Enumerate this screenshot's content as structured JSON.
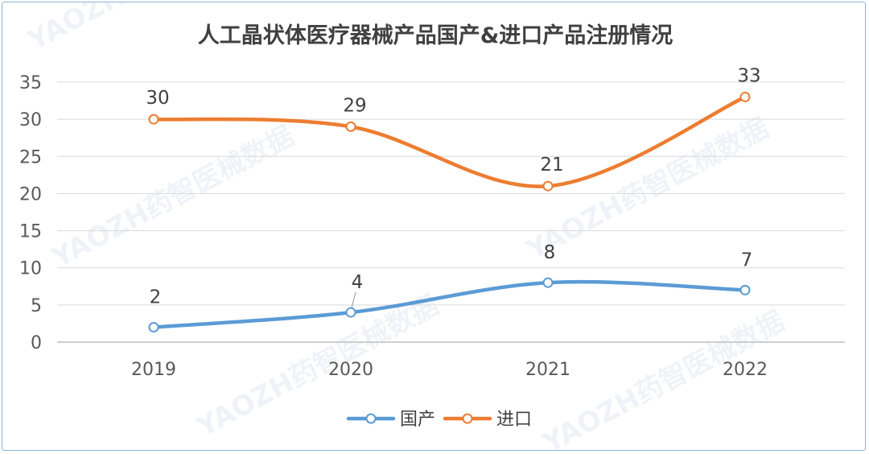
{
  "chart_data": {
    "type": "line",
    "title": "人工晶状体医疗器械产品国产&进口产品注册情况",
    "categories": [
      "2019",
      "2020",
      "2021",
      "2022"
    ],
    "series": [
      {
        "name": "国产",
        "values": [
          2,
          4,
          8,
          7
        ],
        "color": "#5b9bd5"
      },
      {
        "name": "进口",
        "values": [
          30,
          29,
          21,
          33
        ],
        "color": "#ed7d31"
      }
    ],
    "ylim": [
      0,
      35
    ],
    "yticks": [
      0,
      5,
      10,
      15,
      20,
      25,
      30,
      35
    ],
    "xlabel": "",
    "ylabel": "",
    "grid": true,
    "legend": "bottom-center",
    "watermark": "YAOZH药智医械数据"
  }
}
